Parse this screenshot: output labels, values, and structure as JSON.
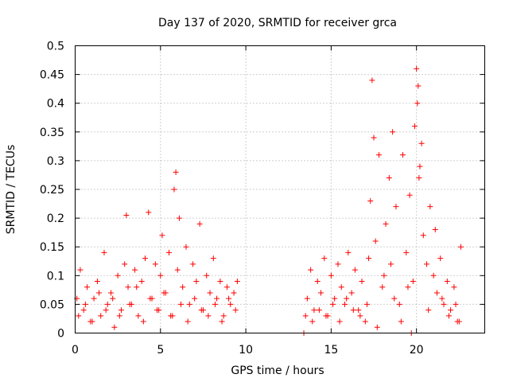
{
  "chart_data": {
    "type": "scatter",
    "title": "Day 137 of 2020, SRMTID for receiver grca",
    "xlabel": "GPS time / hours",
    "ylabel": "SRMTID / TECUs",
    "xlim": [
      0,
      24
    ],
    "ylim": [
      0,
      0.5
    ],
    "x_ticks": [
      0,
      5,
      10,
      15,
      20
    ],
    "x_tick_labels": [
      "0",
      "5",
      "10",
      "15",
      "20"
    ],
    "y_ticks": [
      0,
      0.05,
      0.1,
      0.15,
      0.2,
      0.25,
      0.3,
      0.35,
      0.4,
      0.45,
      0.5
    ],
    "y_tick_labels": [
      "0",
      "0.05",
      "0.1",
      "0.15",
      "0.2",
      "0.25",
      "0.3",
      "0.35",
      "0.4",
      "0.45",
      "0.5"
    ],
    "grid": true,
    "marker": "plus",
    "color": "#ff0000",
    "series": [
      {
        "name": "SRMTID",
        "x": [
          0.1,
          0.3,
          0.5,
          0.7,
          0.9,
          1.1,
          1.3,
          1.5,
          1.7,
          1.9,
          2.1,
          2.3,
          2.5,
          2.7,
          2.9,
          3.0,
          3.1,
          3.3,
          3.5,
          3.7,
          3.9,
          4.1,
          4.3,
          4.5,
          4.7,
          4.9,
          5.0,
          5.1,
          5.3,
          5.5,
          5.7,
          5.8,
          5.9,
          6.0,
          6.1,
          6.3,
          6.5,
          6.7,
          6.9,
          7.1,
          7.3,
          7.5,
          7.7,
          7.9,
          8.1,
          8.3,
          8.5,
          8.7,
          8.9,
          9.1,
          9.3,
          9.5,
          13.4,
          13.6,
          13.8,
          14.0,
          14.2,
          14.4,
          14.6,
          14.8,
          15.0,
          15.2,
          15.4,
          15.6,
          15.8,
          16.0,
          16.2,
          16.4,
          16.6,
          16.8,
          17.0,
          17.2,
          17.3,
          17.4,
          17.5,
          17.6,
          17.8,
          18.0,
          18.2,
          18.4,
          18.5,
          18.6,
          18.8,
          19.0,
          19.2,
          19.4,
          19.6,
          19.8,
          19.9,
          20.0,
          20.05,
          20.1,
          20.2,
          20.3,
          20.4,
          20.6,
          20.8,
          21.0,
          21.2,
          21.4,
          21.6,
          21.8,
          22.0,
          22.2,
          22.4,
          22.6,
          0.2,
          0.6,
          1.0,
          1.4,
          1.8,
          2.2,
          2.6,
          3.2,
          3.6,
          4.0,
          4.4,
          4.8,
          5.2,
          5.6,
          6.2,
          6.6,
          7.0,
          7.4,
          7.8,
          8.2,
          8.6,
          9.0,
          9.4,
          13.5,
          13.9,
          14.3,
          14.7,
          15.1,
          15.5,
          15.9,
          16.3,
          16.7,
          17.1,
          17.7,
          18.1,
          18.7,
          19.1,
          19.5,
          19.7,
          20.15,
          20.7,
          21.1,
          21.5,
          21.9,
          22.3,
          22.5
        ],
        "y": [
          0.06,
          0.11,
          0.04,
          0.08,
          0.02,
          0.06,
          0.09,
          0.03,
          0.14,
          0.05,
          0.07,
          0.01,
          0.1,
          0.04,
          0.12,
          0.205,
          0.08,
          0.05,
          0.11,
          0.03,
          0.09,
          0.13,
          0.21,
          0.06,
          0.12,
          0.04,
          0.1,
          0.17,
          0.07,
          0.14,
          0.03,
          0.25,
          0.28,
          0.11,
          0.2,
          0.08,
          0.15,
          0.05,
          0.12,
          0.09,
          0.19,
          0.04,
          0.1,
          0.07,
          0.13,
          0.06,
          0.09,
          0.03,
          0.08,
          0.05,
          0.07,
          0.09,
          0.0,
          0.06,
          0.11,
          0.04,
          0.09,
          0.07,
          0.13,
          0.03,
          0.1,
          0.06,
          0.12,
          0.08,
          0.05,
          0.14,
          0.07,
          0.11,
          0.04,
          0.09,
          0.02,
          0.13,
          0.23,
          0.44,
          0.34,
          0.16,
          0.31,
          0.08,
          0.19,
          0.27,
          0.12,
          0.35,
          0.22,
          0.05,
          0.31,
          0.14,
          0.24,
          0.09,
          0.36,
          0.46,
          0.4,
          0.43,
          0.29,
          0.33,
          0.17,
          0.12,
          0.22,
          0.1,
          0.07,
          0.13,
          0.05,
          0.09,
          0.04,
          0.08,
          0.02,
          0.15,
          0.03,
          0.05,
          0.02,
          0.07,
          0.04,
          0.06,
          0.03,
          0.05,
          0.08,
          0.02,
          0.06,
          0.04,
          0.07,
          0.03,
          0.05,
          0.02,
          0.06,
          0.04,
          0.03,
          0.05,
          0.02,
          0.06,
          0.04,
          0.03,
          0.02,
          0.04,
          0.03,
          0.05,
          0.02,
          0.06,
          0.04,
          0.03,
          0.05,
          0.01,
          0.1,
          0.06,
          0.02,
          0.08,
          0.0,
          0.27,
          0.04,
          0.18,
          0.06,
          0.03,
          0.05,
          0.02
        ]
      }
    ]
  }
}
